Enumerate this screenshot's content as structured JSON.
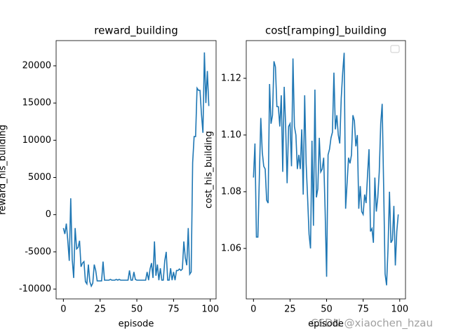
{
  "chart_data": [
    {
      "type": "line",
      "title": "reward_building",
      "xlabel": "episode",
      "ylabel": "reward_his_building",
      "x": [
        0,
        1,
        2,
        3,
        4,
        5,
        6,
        7,
        8,
        9,
        10,
        11,
        12,
        13,
        14,
        15,
        16,
        17,
        18,
        19,
        20,
        21,
        22,
        23,
        24,
        25,
        26,
        27,
        28,
        29,
        30,
        31,
        32,
        33,
        34,
        35,
        36,
        37,
        38,
        39,
        40,
        41,
        42,
        43,
        44,
        45,
        46,
        47,
        48,
        49,
        50,
        51,
        52,
        53,
        54,
        55,
        56,
        57,
        58,
        59,
        60,
        61,
        62,
        63,
        64,
        65,
        66,
        67,
        68,
        69,
        70,
        71,
        72,
        73,
        74,
        75,
        76,
        77,
        78,
        79,
        80,
        81,
        82,
        83,
        84,
        85,
        86,
        87,
        88,
        89,
        90,
        91,
        92,
        93,
        94,
        95,
        96,
        97,
        98,
        99
      ],
      "series": [
        {
          "color": "#1f77b4",
          "values": [
            -1800,
            -2600,
            -1200,
            -3500,
            -6200,
            2200,
            -6000,
            -8500,
            -1800,
            -4600,
            -4400,
            -3500,
            -7000,
            -6500,
            -6300,
            -9000,
            -9300,
            -6700,
            -9000,
            -9600,
            -9200,
            -6700,
            -7500,
            -8900,
            -8900,
            -8900,
            -8900,
            -6300,
            -8800,
            -8800,
            -8800,
            -8800,
            -8700,
            -8800,
            -8800,
            -8800,
            -8700,
            -8800,
            -8700,
            -8800,
            -8800,
            -8800,
            -8800,
            -8800,
            -8800,
            -7500,
            -8800,
            -8800,
            -7700,
            -8700,
            -8800,
            -8800,
            -8800,
            -8800,
            -8800,
            -8800,
            -8800,
            -7700,
            -8800,
            -7300,
            -6500,
            -8500,
            -3600,
            -8200,
            -6700,
            -8800,
            -7200,
            -8800,
            -8800,
            -6200,
            -5000,
            -8800,
            -8800,
            -7200,
            -8800,
            -7700,
            -8800,
            -7500,
            -7500,
            -7300,
            -7500,
            -7300,
            -3600,
            -5800,
            -6800,
            -1800,
            -8000,
            -7700,
            7000,
            10500,
            10500,
            17000,
            16700,
            16700,
            13500,
            11000,
            21800,
            15000,
            19300,
            14600
          ]
        }
      ],
      "xlim": [
        -4.95,
        103.95
      ],
      "xticks": [
        0,
        25,
        50,
        75,
        100
      ],
      "ylim": [
        -11317,
        23386
      ],
      "yticks": [
        -10000,
        -5000,
        0,
        5000,
        10000,
        15000,
        20000
      ]
    },
    {
      "type": "line",
      "title": "cost[ramping]_building",
      "xlabel": "episode",
      "ylabel": "cost_his_building",
      "x": [
        0,
        1,
        2,
        3,
        4,
        5,
        6,
        7,
        8,
        9,
        10,
        11,
        12,
        13,
        14,
        15,
        16,
        17,
        18,
        19,
        20,
        21,
        22,
        23,
        24,
        25,
        26,
        27,
        28,
        29,
        30,
        31,
        32,
        33,
        34,
        35,
        36,
        37,
        38,
        39,
        40,
        41,
        42,
        43,
        44,
        45,
        46,
        47,
        48,
        49,
        50,
        51,
        52,
        53,
        54,
        55,
        56,
        57,
        58,
        59,
        60,
        61,
        62,
        63,
        64,
        65,
        66,
        67,
        68,
        69,
        70,
        71,
        72,
        73,
        74,
        75,
        76,
        77,
        78,
        79,
        80,
        81,
        82,
        83,
        84,
        85,
        86,
        87,
        88,
        89,
        90,
        91,
        92,
        93,
        94,
        95,
        96,
        97,
        98,
        99
      ],
      "series": [
        {
          "color": "#1f77b4",
          "values": [
            1.085,
            1.097,
            1.064,
            1.064,
            1.085,
            1.106,
            1.094,
            1.089,
            1.088,
            1.077,
            1.076,
            1.118,
            1.104,
            1.107,
            1.126,
            1.124,
            1.11,
            1.11,
            1.103,
            1.114,
            1.087,
            1.117,
            1.103,
            1.083,
            1.103,
            1.104,
            1.089,
            1.127,
            1.103,
            1.1,
            1.088,
            1.093,
            1.088,
            1.102,
            1.079,
            1.114,
            1.09,
            1.078,
            1.065,
            1.06,
            1.098,
            1.068,
            1.116,
            1.078,
            1.081,
            1.099,
            1.087,
            1.088,
            1.092,
            1.073,
            1.05,
            1.093,
            1.095,
            1.099,
            1.101,
            1.122,
            1.102,
            1.107,
            1.1,
            1.097,
            1.113,
            1.122,
            1.129,
            1.074,
            1.083,
            1.092,
            1.09,
            1.093,
            1.107,
            1.105,
            1.096,
            1.1,
            1.074,
            1.082,
            1.073,
            1.072,
            1.079,
            1.076,
            1.086,
            1.095,
            1.066,
            1.067,
            1.062,
            1.085,
            1.073,
            1.078,
            1.087,
            1.104,
            1.111,
            1.082,
            1.051,
            1.047,
            1.06,
            1.08,
            1.062,
            1.063,
            1.075,
            1.054,
            1.066,
            1.072
          ]
        }
      ],
      "xlim": [
        -4.95,
        103.95
      ],
      "xticks": [
        0,
        25,
        50,
        75,
        100
      ],
      "ylim": [
        1.0422,
        1.1333
      ],
      "yticks": [
        1.06,
        1.08,
        {
          "value": 1.1,
          "label": "1.10"
        },
        1.12
      ]
    }
  ],
  "watermark": "CSDN @xiaochen_hzau"
}
